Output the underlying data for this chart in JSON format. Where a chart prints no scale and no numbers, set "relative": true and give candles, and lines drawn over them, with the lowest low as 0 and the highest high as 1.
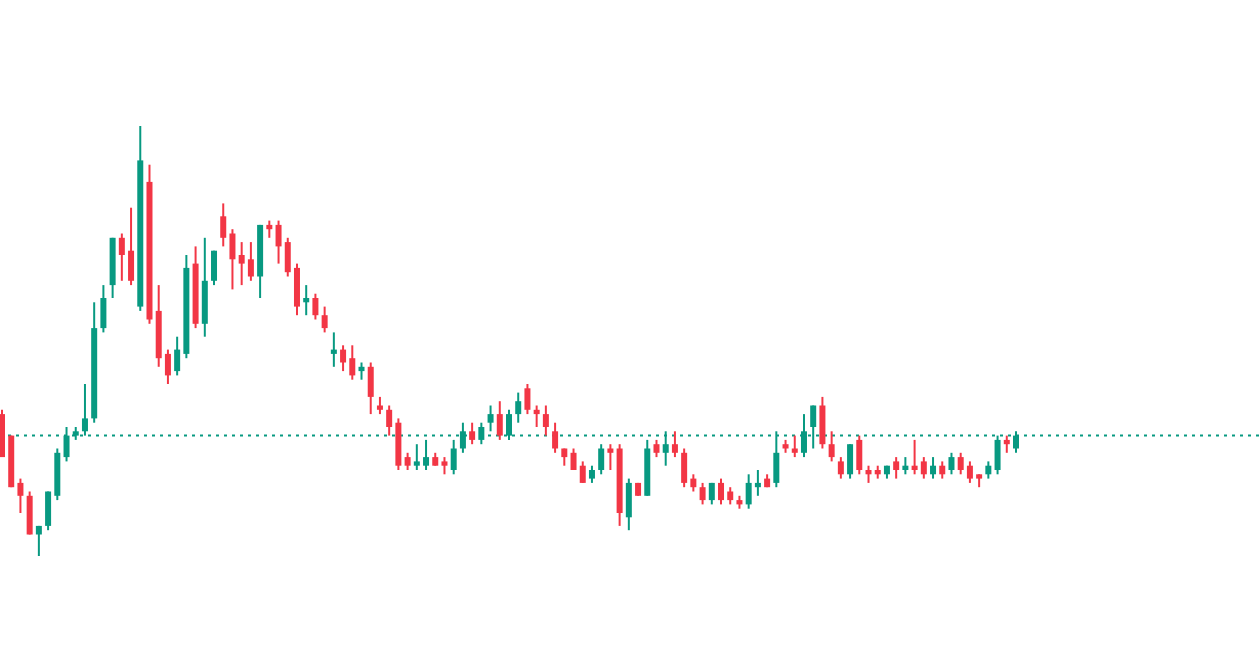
{
  "chart_data": {
    "type": "candlestick",
    "relative": true,
    "categories": [
      null,
      null,
      null,
      null,
      null,
      null,
      null,
      null,
      null,
      null,
      null,
      null,
      null,
      null,
      null,
      null,
      null,
      null,
      null,
      null,
      null,
      null,
      null,
      null,
      null,
      null,
      null,
      null,
      null,
      null,
      null,
      null,
      null,
      null,
      null,
      null,
      null,
      null,
      null,
      null,
      null,
      null,
      null,
      null,
      null,
      null,
      null,
      null,
      null,
      null,
      null,
      null,
      null,
      null,
      null,
      null,
      null,
      null,
      null,
      null,
      null,
      null,
      null,
      null,
      null,
      null,
      null,
      null,
      null,
      null,
      null,
      null,
      null,
      null,
      null,
      null,
      null,
      null,
      null,
      null,
      null,
      null,
      null,
      null,
      null,
      null,
      null,
      null,
      null,
      null,
      null,
      null,
      null,
      null,
      null,
      null,
      null,
      null,
      null,
      null,
      null,
      null,
      null,
      null,
      null,
      null,
      null,
      null,
      null,
      null,
      null
    ],
    "ohlc": [
      [
        0.33,
        0.34,
        0.23,
        0.23
      ],
      [
        0.28,
        0.28,
        0.16,
        0.16
      ],
      [
        0.17,
        0.18,
        0.1,
        0.14
      ],
      [
        0.14,
        0.15,
        0.05,
        0.05
      ],
      [
        0.05,
        0.07,
        0,
        0.07
      ],
      [
        0.07,
        0.15,
        0.06,
        0.15
      ],
      [
        0.14,
        0.25,
        0.13,
        0.24
      ],
      [
        0.23,
        0.3,
        0.22,
        0.28
      ],
      [
        0.28,
        0.3,
        0.27,
        0.29
      ],
      [
        0.29,
        0.4,
        0.28,
        0.32
      ],
      [
        0.32,
        0.59,
        0.31,
        0.53
      ],
      [
        0.53,
        0.63,
        0.52,
        0.6
      ],
      [
        0.63,
        0.74,
        0.6,
        0.74
      ],
      [
        0.74,
        0.75,
        0.64,
        0.7
      ],
      [
        0.71,
        0.81,
        0.63,
        0.64
      ],
      [
        0.58,
        1,
        0.57,
        0.92
      ],
      [
        0.87,
        0.91,
        0.54,
        0.55
      ],
      [
        0.57,
        0.63,
        0.44,
        0.46
      ],
      [
        0.47,
        0.48,
        0.4,
        0.42
      ],
      [
        0.43,
        0.51,
        0.42,
        0.48
      ],
      [
        0.47,
        0.7,
        0.46,
        0.67
      ],
      [
        0.68,
        0.72,
        0.53,
        0.54
      ],
      [
        0.54,
        0.74,
        0.51,
        0.64
      ],
      [
        0.64,
        0.71,
        0.63,
        0.71
      ],
      [
        0.79,
        0.82,
        0.72,
        0.74
      ],
      [
        0.75,
        0.76,
        0.62,
        0.69
      ],
      [
        0.7,
        0.73,
        0.63,
        0.68
      ],
      [
        0.69,
        0.73,
        0.64,
        0.65
      ],
      [
        0.65,
        0.77,
        0.6,
        0.77
      ],
      [
        0.77,
        0.78,
        0.74,
        0.76
      ],
      [
        0.77,
        0.78,
        0.68,
        0.72
      ],
      [
        0.73,
        0.74,
        0.65,
        0.66
      ],
      [
        0.67,
        0.68,
        0.56,
        0.58
      ],
      [
        0.59,
        0.63,
        0.56,
        0.6
      ],
      [
        0.6,
        0.61,
        0.55,
        0.56
      ],
      [
        0.56,
        0.58,
        0.52,
        0.53
      ],
      [
        0.47,
        0.52,
        0.44,
        0.48
      ],
      [
        0.48,
        0.49,
        0.43,
        0.45
      ],
      [
        0.46,
        0.49,
        0.41,
        0.42
      ],
      [
        0.43,
        0.45,
        0.41,
        0.44
      ],
      [
        0.44,
        0.45,
        0.33,
        0.37
      ],
      [
        0.35,
        0.37,
        0.33,
        0.34
      ],
      [
        0.34,
        0.35,
        0.28,
        0.3
      ],
      [
        0.31,
        0.32,
        0.2,
        0.21
      ],
      [
        0.23,
        0.24,
        0.2,
        0.21
      ],
      [
        0.21,
        0.26,
        0.2,
        0.22
      ],
      [
        0.21,
        0.27,
        0.2,
        0.23
      ],
      [
        0.23,
        0.24,
        0.21,
        0.21
      ],
      [
        0.22,
        0.23,
        0.19,
        0.21
      ],
      [
        0.2,
        0.27,
        0.19,
        0.25
      ],
      [
        0.25,
        0.31,
        0.24,
        0.29
      ],
      [
        0.29,
        0.31,
        0.26,
        0.27
      ],
      [
        0.27,
        0.31,
        0.26,
        0.3
      ],
      [
        0.31,
        0.35,
        0.29,
        0.33
      ],
      [
        0.33,
        0.36,
        0.27,
        0.28
      ],
      [
        0.28,
        0.34,
        0.27,
        0.33
      ],
      [
        0.33,
        0.38,
        0.31,
        0.36
      ],
      [
        0.39,
        0.4,
        0.33,
        0.34
      ],
      [
        0.34,
        0.35,
        0.3,
        0.33
      ],
      [
        0.33,
        0.35,
        0.28,
        0.3
      ],
      [
        0.29,
        0.31,
        0.24,
        0.25
      ],
      [
        0.25,
        0.25,
        0.21,
        0.23
      ],
      [
        0.24,
        0.25,
        0.2,
        0.2
      ],
      [
        0.21,
        0.22,
        0.17,
        0.17
      ],
      [
        0.18,
        0.21,
        0.17,
        0.2
      ],
      [
        0.2,
        0.26,
        0.19,
        0.25
      ],
      [
        0.25,
        0.26,
        0.2,
        0.24
      ],
      [
        0.25,
        0.26,
        0.07,
        0.1
      ],
      [
        0.09,
        0.18,
        0.06,
        0.17
      ],
      [
        0.17,
        0.17,
        0.14,
        0.14
      ],
      [
        0.14,
        0.27,
        0.14,
        0.25
      ],
      [
        0.26,
        0.27,
        0.23,
        0.24
      ],
      [
        0.24,
        0.29,
        0.21,
        0.26
      ],
      [
        0.26,
        0.29,
        0.23,
        0.24
      ],
      [
        0.24,
        0.25,
        0.16,
        0.17
      ],
      [
        0.18,
        0.19,
        0.15,
        0.16
      ],
      [
        0.16,
        0.17,
        0.12,
        0.13
      ],
      [
        0.13,
        0.17,
        0.12,
        0.17
      ],
      [
        0.17,
        0.18,
        0.12,
        0.13
      ],
      [
        0.15,
        0.16,
        0.12,
        0.13
      ],
      [
        0.13,
        0.14,
        0.11,
        0.12
      ],
      [
        0.12,
        0.19,
        0.11,
        0.17
      ],
      [
        0.16,
        0.2,
        0.14,
        0.17
      ],
      [
        0.18,
        0.19,
        0.16,
        0.16
      ],
      [
        0.17,
        0.29,
        0.16,
        0.24
      ],
      [
        0.26,
        0.27,
        0.24,
        0.25
      ],
      [
        0.25,
        0.28,
        0.23,
        0.24
      ],
      [
        0.24,
        0.33,
        0.23,
        0.29
      ],
      [
        0.3,
        0.35,
        0.25,
        0.35
      ],
      [
        0.35,
        0.37,
        0.25,
        0.26
      ],
      [
        0.26,
        0.29,
        0.22,
        0.23
      ],
      [
        0.22,
        0.23,
        0.18,
        0.19
      ],
      [
        0.19,
        0.26,
        0.18,
        0.26
      ],
      [
        0.27,
        0.28,
        0.19,
        0.2
      ],
      [
        0.2,
        0.21,
        0.17,
        0.19
      ],
      [
        0.2,
        0.21,
        0.18,
        0.19
      ],
      [
        0.19,
        0.21,
        0.18,
        0.21
      ],
      [
        0.22,
        0.23,
        0.18,
        0.2
      ],
      [
        0.2,
        0.23,
        0.19,
        0.21
      ],
      [
        0.21,
        0.27,
        0.19,
        0.2
      ],
      [
        0.22,
        0.23,
        0.18,
        0.19
      ],
      [
        0.19,
        0.23,
        0.18,
        0.21
      ],
      [
        0.21,
        0.22,
        0.18,
        0.19
      ],
      [
        0.2,
        0.24,
        0.19,
        0.23
      ],
      [
        0.23,
        0.24,
        0.19,
        0.2
      ],
      [
        0.21,
        0.22,
        0.17,
        0.18
      ],
      [
        0.19,
        0.19,
        0.16,
        0.18
      ],
      [
        0.19,
        0.22,
        0.18,
        0.21
      ],
      [
        0.2,
        0.28,
        0.19,
        0.27
      ],
      [
        0.27,
        0.28,
        0.24,
        0.26
      ],
      [
        0.25,
        0.29,
        0.24,
        0.28
      ]
    ],
    "ref_lines": [
      {
        "axis": "y",
        "value": 0.28,
        "color": "#089981",
        "line_style": "dotted"
      }
    ]
  }
}
